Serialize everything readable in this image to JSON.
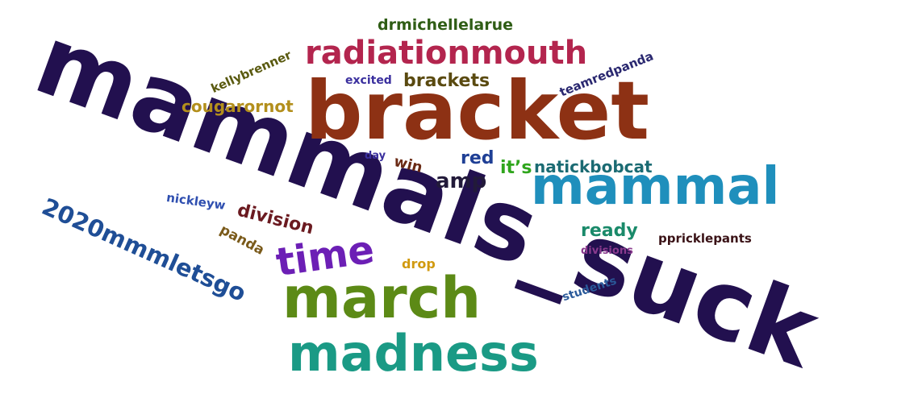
{
  "words": {
    "mammals_suck": {
      "text": "mammals_suck",
      "color": "#22104f"
    },
    "bracket": {
      "text": "bracket",
      "color": "#8d3114"
    },
    "march": {
      "text": "march",
      "color": "#5c8a16"
    },
    "madness": {
      "text": "madness",
      "color": "#1a9a85"
    },
    "mammal": {
      "text": "mammal",
      "color": "#1f8fbc"
    },
    "radiationmouth": {
      "text": "radiationmouth",
      "color": "#b3254e"
    },
    "time": {
      "text": "time",
      "color": "#6c1fb5"
    },
    "mmmletsgo": {
      "text": "2020mmmletsgo",
      "color": "#1f4e96"
    },
    "brackets": {
      "text": "brackets",
      "color": "#5a4a10"
    },
    "cougarornot": {
      "text": "cougarornot",
      "color": "#b38f1c"
    },
    "drmichellelarue": {
      "text": "drmichellelarue",
      "color": "#2f5d15"
    },
    "kellybrenner": {
      "text": "kellybrenner",
      "color": "#5a5a10"
    },
    "excited": {
      "text": "excited",
      "color": "#3a2f9e"
    },
    "teamredpanda": {
      "text": "teamredpanda",
      "color": "#2a2870"
    },
    "natickbobcat": {
      "text": "natickbobcat",
      "color": "#1b6b73"
    },
    "its": {
      "text": "it’s",
      "color": "#2fa51c"
    },
    "red": {
      "text": "red",
      "color": "#1f3f95"
    },
    "amp": {
      "text": "amp",
      "color": "#221a3a"
    },
    "win": {
      "text": "win",
      "color": "#6a2a14"
    },
    "day": {
      "text": "day",
      "color": "#3a2f9e"
    },
    "nickleyw": {
      "text": "nickleyw",
      "color": "#2f4fb0"
    },
    "division": {
      "text": "division",
      "color": "#6b1a20"
    },
    "panda": {
      "text": "panda",
      "color": "#7a5a1a"
    },
    "ready": {
      "text": "ready",
      "color": "#1a8a6a"
    },
    "ppricklepants": {
      "text": "ppricklepants",
      "color": "#3a1216"
    },
    "divisions": {
      "text": "divisions",
      "color": "#8a3a8e"
    },
    "drop": {
      "text": "drop",
      "color": "#d19a10"
    },
    "students": {
      "text": "students",
      "color": "#2a5a9a"
    }
  }
}
